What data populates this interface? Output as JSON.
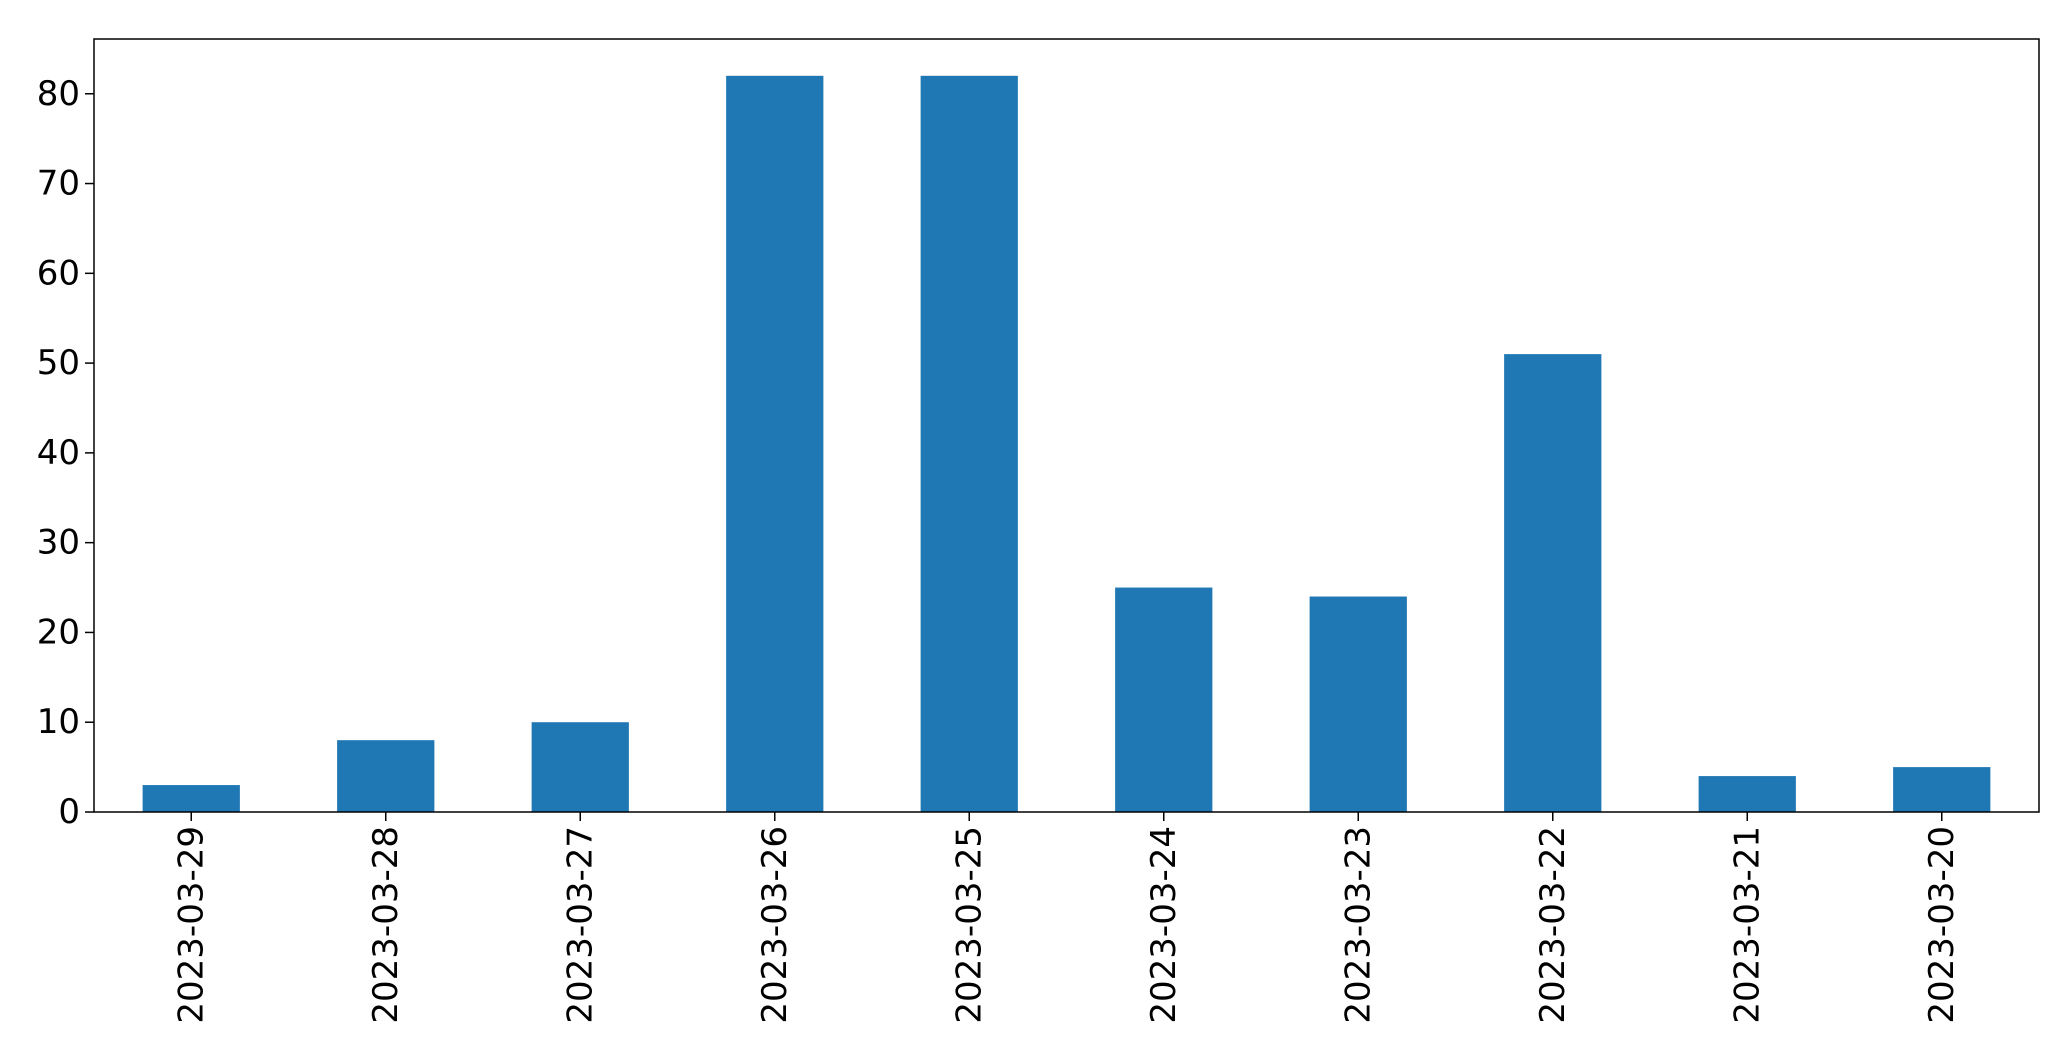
{
  "chart_data": {
    "type": "bar",
    "title": "",
    "xlabel": "",
    "ylabel": "",
    "categories": [
      "2023-03-29",
      "2023-03-28",
      "2023-03-27",
      "2023-03-26",
      "2023-03-25",
      "2023-03-24",
      "2023-03-23",
      "2023-03-22",
      "2023-03-21",
      "2023-03-20"
    ],
    "values": [
      3,
      8,
      10,
      82,
      82,
      25,
      24,
      51,
      4,
      5
    ],
    "ylim": [
      0,
      86.1
    ],
    "yticks": [
      0,
      10,
      20,
      30,
      40,
      50,
      60,
      70,
      80
    ],
    "bar_color": "#1f77b4",
    "grid": false,
    "legend": "none",
    "x_tick_rotation": "vertical"
  }
}
